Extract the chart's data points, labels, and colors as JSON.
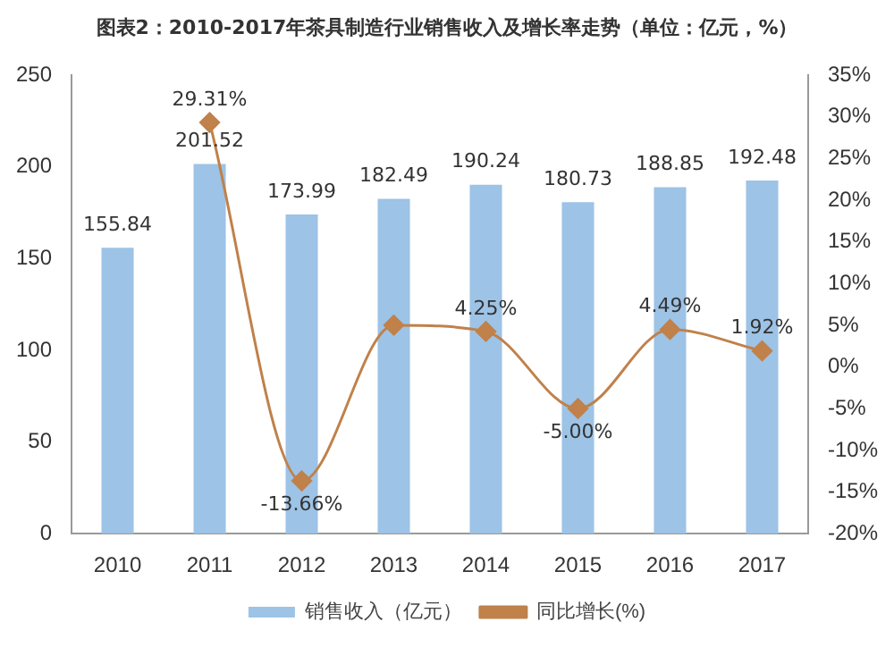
{
  "chart_data": {
    "type": "bar",
    "title": "图表2：2010-2017年茶具制造行业销售收入及增长率走势（单位：亿元，%）",
    "categories": [
      "2010",
      "2011",
      "2012",
      "2013",
      "2014",
      "2015",
      "2016",
      "2017"
    ],
    "series": [
      {
        "name": "销售收入（亿元）",
        "color": "#9dc3e6",
        "values": [
          155.84,
          201.52,
          173.99,
          182.49,
          190.24,
          180.73,
          188.85,
          192.48
        ],
        "data_labels": true
      },
      {
        "name": "同比增长(%)",
        "type": "line",
        "axis": "y2",
        "color": "#c0814a",
        "marker": "diamond",
        "values": [
          null,
          29.31,
          -13.66,
          5,
          4.25,
          -5.0,
          4.49,
          1.92
        ],
        "value_labels": [
          null,
          "29.31%",
          "-13.66%",
          null,
          "4.25%",
          "-5.00%",
          "4.49%",
          "1.92%"
        ]
      }
    ],
    "ylim": [
      0,
      250
    ],
    "yticks": [
      0,
      50,
      100,
      150,
      200,
      250
    ],
    "y2lim": [
      -20,
      35
    ],
    "y2ticks": [
      {
        "value": -20,
        "label": "-20%"
      },
      {
        "value": -15,
        "label": "-15%"
      },
      {
        "value": -10,
        "label": "-10%"
      },
      {
        "value": -5,
        "label": "-5%"
      },
      {
        "value": 0,
        "label": "0%"
      },
      {
        "value": 5,
        "label": "5%"
      },
      {
        "value": 10,
        "label": "10%"
      },
      {
        "value": 15,
        "label": "15%"
      },
      {
        "value": 20,
        "label": "20%"
      },
      {
        "value": 25,
        "label": "25%"
      },
      {
        "value": 30,
        "label": "30%"
      },
      {
        "value": 35,
        "label": "35%"
      }
    ],
    "grid": false,
    "legend": "bottom"
  }
}
